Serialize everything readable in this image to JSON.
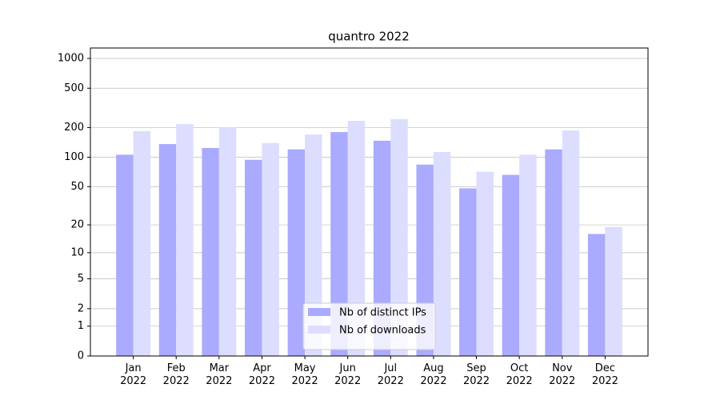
{
  "chart_data": {
    "type": "bar",
    "title": "quantro 2022",
    "categories": [
      "Jan\n2022",
      "Feb\n2022",
      "Mar\n2022",
      "Apr\n2022",
      "May\n2022",
      "Jun\n2022",
      "Jul\n2022",
      "Aug\n2022",
      "Sep\n2022",
      "Oct\n2022",
      "Nov\n2022",
      "Dec\n2022"
    ],
    "series": [
      {
        "name": "Nb of distinct IPs",
        "color": "#aaaaff",
        "values": [
          106,
          136,
          124,
          94,
          120,
          180,
          147,
          84,
          48,
          66,
          120,
          16
        ]
      },
      {
        "name": "Nb of downloads",
        "color": "#ddddff",
        "values": [
          184,
          217,
          201,
          139,
          170,
          234,
          243,
          113,
          71,
          106,
          187,
          19
        ]
      }
    ],
    "yscale": "log1p",
    "ylim": [
      0,
      1273
    ],
    "yticks": [
      0,
      1,
      2,
      5,
      10,
      20,
      50,
      100,
      200,
      500,
      1000
    ],
    "grid": true,
    "legend": "lower center"
  }
}
